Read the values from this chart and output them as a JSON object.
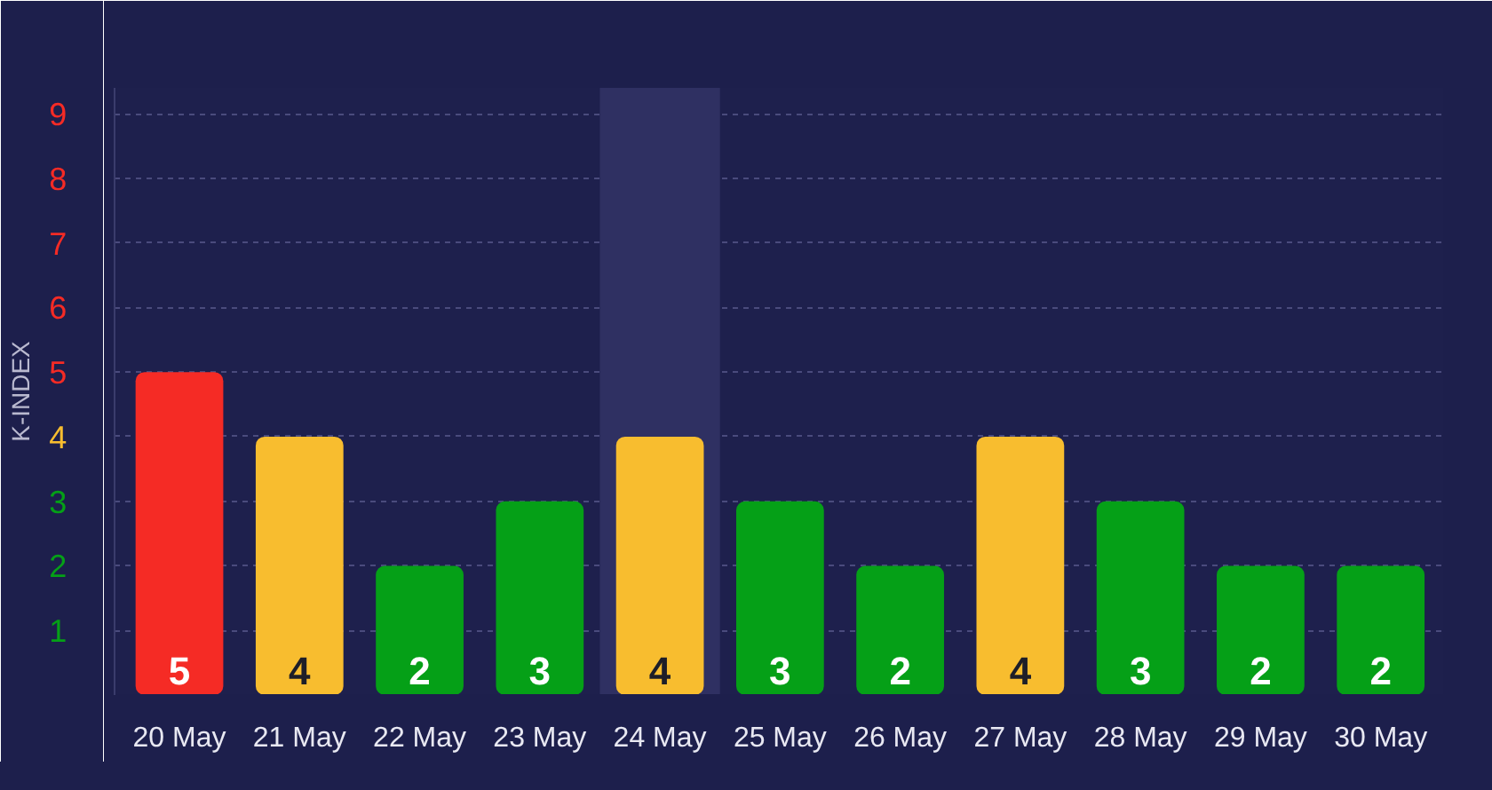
{
  "chart_data": {
    "type": "bar",
    "ylabel": "K-INDEX",
    "categories": [
      "20 May",
      "21 May",
      "22 May",
      "23 May",
      "24 May",
      "25 May",
      "26 May",
      "27 May",
      "28 May",
      "29 May",
      "30 May"
    ],
    "values": [
      5,
      4,
      2,
      3,
      4,
      3,
      2,
      4,
      3,
      2,
      2
    ],
    "colors": [
      "#f52b25",
      "#f8bd2f",
      "#05a017",
      "#05a017",
      "#f8bd2f",
      "#05a017",
      "#05a017",
      "#f8bd2f",
      "#05a017",
      "#05a017",
      "#05a017"
    ],
    "data_labels": true,
    "ylim": [
      0,
      9.4
    ],
    "yticks": [
      1,
      2,
      3,
      4,
      5,
      6,
      7,
      8,
      9
    ],
    "grid": "y",
    "bands": [
      {
        "axis": "x",
        "from": "24 May",
        "to": "24 May",
        "color": "#2f3062"
      }
    ]
  }
}
